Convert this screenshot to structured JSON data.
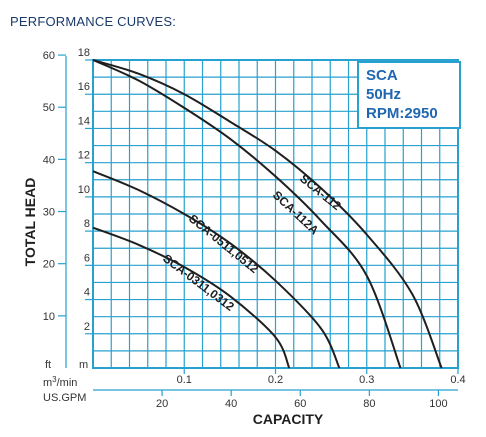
{
  "page": {
    "heading": "PERFORMANCE CURVES:"
  },
  "info_box": {
    "line1": "SCA",
    "line2": "50Hz",
    "line3": "RPM:2950"
  },
  "colors": {
    "grid": "#27a1cf",
    "frame": "#27a1cf",
    "curve": "#1f1f1f",
    "info_text": "#1f67b1",
    "heading": "#1a3a6b"
  },
  "chart_data": {
    "type": "line",
    "xlabel": "CAPACITY",
    "ylabel": "TOTAL HEAD",
    "x_unit_primary": "m3/min",
    "x_unit_secondary": "US.GPM",
    "y_unit_primary": "m",
    "y_unit_secondary": "ft",
    "xlim": [
      0,
      0.4
    ],
    "ylim": [
      0,
      18
    ],
    "x_ticks_primary": [
      "0.1",
      "0.2",
      "0.3",
      "0.4"
    ],
    "x_ticks_secondary": [
      "20",
      "40",
      "60",
      "80",
      "100"
    ],
    "y_ticks_primary": [
      "2",
      "4",
      "6",
      "8",
      "10",
      "12",
      "14",
      "16",
      "18"
    ],
    "y_ticks_secondary": [
      "10",
      "20",
      "30",
      "40",
      "50",
      "60"
    ],
    "grid": true,
    "series": [
      {
        "name": "SCA-112",
        "points": [
          [
            0,
            18
          ],
          [
            0.05,
            17.2
          ],
          [
            0.1,
            16
          ],
          [
            0.15,
            14.4
          ],
          [
            0.2,
            12.7
          ],
          [
            0.25,
            10.5
          ],
          [
            0.3,
            7.8
          ],
          [
            0.35,
            4.3
          ],
          [
            0.382,
            0
          ]
        ]
      },
      {
        "name": "SCA-112A",
        "points": [
          [
            0,
            18
          ],
          [
            0.05,
            16.8
          ],
          [
            0.1,
            15.2
          ],
          [
            0.15,
            13.4
          ],
          [
            0.2,
            11.2
          ],
          [
            0.25,
            8.6
          ],
          [
            0.3,
            5.4
          ],
          [
            0.337,
            0
          ]
        ]
      },
      {
        "name": "SCA-0511,0512",
        "points": [
          [
            0,
            11.5
          ],
          [
            0.05,
            10.4
          ],
          [
            0.1,
            9
          ],
          [
            0.15,
            7.3
          ],
          [
            0.2,
            5.1
          ],
          [
            0.25,
            2.3
          ],
          [
            0.27,
            0
          ]
        ]
      },
      {
        "name": "SCA-0311,0312",
        "points": [
          [
            0,
            8.2
          ],
          [
            0.05,
            7.2
          ],
          [
            0.1,
            5.9
          ],
          [
            0.15,
            4.2
          ],
          [
            0.2,
            1.8
          ],
          [
            0.215,
            0
          ]
        ]
      }
    ]
  }
}
